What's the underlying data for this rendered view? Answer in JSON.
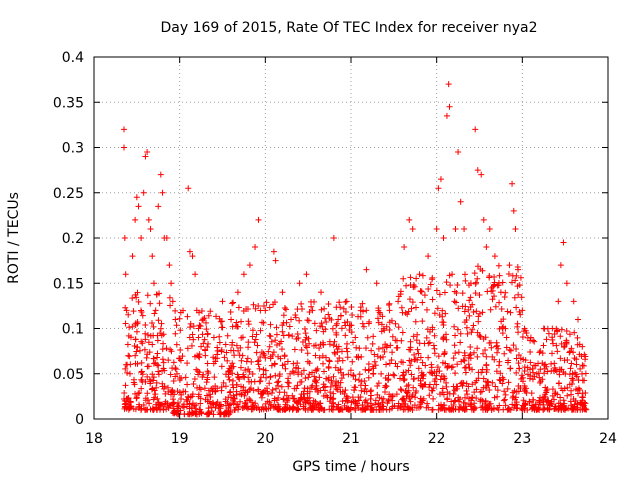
{
  "chart_data": {
    "type": "scatter",
    "title": "Day 169 of 2015, Rate Of TEC Index for receiver nya2",
    "xlabel": "GPS time / hours",
    "ylabel": "ROTI / TECUs",
    "xlim": [
      18,
      24
    ],
    "ylim": [
      0,
      0.4
    ],
    "x_ticks": [
      "18",
      "19",
      "20",
      "21",
      "22",
      "23",
      "24"
    ],
    "y_ticks": [
      "0",
      "0.05",
      "0.1",
      "0.15",
      "0.2",
      "0.25",
      "0.3",
      "0.35",
      "0.4"
    ],
    "grid": true,
    "marker": "+",
    "series": [
      {
        "name": "ROTI",
        "color": "#ff0000",
        "points": [
          [
            18.35,
            0.32
          ],
          [
            18.35,
            0.3
          ],
          [
            18.36,
            0.2
          ],
          [
            18.37,
            0.16
          ],
          [
            18.38,
            0.12
          ],
          [
            18.4,
            0.07
          ],
          [
            18.42,
            0.05
          ],
          [
            18.36,
            0.02
          ],
          [
            18.45,
            0.18
          ],
          [
            18.48,
            0.22
          ],
          [
            18.5,
            0.245
          ],
          [
            18.52,
            0.235
          ],
          [
            18.55,
            0.2
          ],
          [
            18.58,
            0.25
          ],
          [
            18.6,
            0.29
          ],
          [
            18.62,
            0.295
          ],
          [
            18.64,
            0.22
          ],
          [
            18.66,
            0.21
          ],
          [
            18.68,
            0.18
          ],
          [
            18.7,
            0.15
          ],
          [
            18.72,
            0.12
          ],
          [
            18.75,
            0.235
          ],
          [
            18.78,
            0.27
          ],
          [
            18.8,
            0.25
          ],
          [
            18.82,
            0.2
          ],
          [
            18.85,
            0.2
          ],
          [
            18.88,
            0.17
          ],
          [
            18.9,
            0.15
          ],
          [
            18.92,
            0.13
          ],
          [
            18.95,
            0.11
          ],
          [
            19.1,
            0.255
          ],
          [
            19.12,
            0.185
          ],
          [
            19.15,
            0.18
          ],
          [
            19.18,
            0.16
          ],
          [
            19.2,
            0.12
          ],
          [
            19.22,
            0.1
          ],
          [
            19.25,
            0.08
          ],
          [
            19.3,
            0.07
          ],
          [
            19.4,
            0.09
          ],
          [
            19.5,
            0.13
          ],
          [
            19.6,
            0.11
          ],
          [
            19.68,
            0.14
          ],
          [
            19.75,
            0.16
          ],
          [
            19.82,
            0.17
          ],
          [
            19.88,
            0.19
          ],
          [
            19.92,
            0.22
          ],
          [
            20.0,
            0.12
          ],
          [
            20.1,
            0.185
          ],
          [
            20.12,
            0.175
          ],
          [
            20.2,
            0.14
          ],
          [
            20.3,
            0.11
          ],
          [
            20.4,
            0.15
          ],
          [
            20.48,
            0.16
          ],
          [
            20.55,
            0.12
          ],
          [
            20.65,
            0.14
          ],
          [
            20.8,
            0.2
          ],
          [
            20.85,
            0.11
          ],
          [
            20.95,
            0.13
          ],
          [
            21.05,
            0.09
          ],
          [
            21.18,
            0.165
          ],
          [
            21.3,
            0.15
          ],
          [
            21.45,
            0.12
          ],
          [
            21.55,
            0.13
          ],
          [
            21.62,
            0.19
          ],
          [
            21.68,
            0.22
          ],
          [
            21.72,
            0.21
          ],
          [
            21.8,
            0.16
          ],
          [
            21.9,
            0.18
          ],
          [
            22.0,
            0.21
          ],
          [
            22.02,
            0.255
          ],
          [
            22.05,
            0.265
          ],
          [
            22.08,
            0.2
          ],
          [
            22.12,
            0.335
          ],
          [
            22.14,
            0.37
          ],
          [
            22.15,
            0.345
          ],
          [
            22.18,
            0.16
          ],
          [
            22.22,
            0.21
          ],
          [
            22.25,
            0.295
          ],
          [
            22.28,
            0.24
          ],
          [
            22.32,
            0.21
          ],
          [
            22.4,
            0.15
          ],
          [
            22.45,
            0.32
          ],
          [
            22.48,
            0.275
          ],
          [
            22.52,
            0.27
          ],
          [
            22.55,
            0.22
          ],
          [
            22.58,
            0.19
          ],
          [
            22.62,
            0.21
          ],
          [
            22.68,
            0.18
          ],
          [
            22.75,
            0.14
          ],
          [
            22.85,
            0.17
          ],
          [
            22.88,
            0.26
          ],
          [
            22.9,
            0.23
          ],
          [
            22.92,
            0.21
          ],
          [
            22.95,
            0.165
          ],
          [
            23.0,
            0.12
          ],
          [
            23.1,
            0.09
          ],
          [
            23.25,
            0.1
          ],
          [
            23.35,
            0.1
          ],
          [
            23.42,
            0.13
          ],
          [
            23.45,
            0.17
          ],
          [
            23.48,
            0.195
          ],
          [
            23.52,
            0.15
          ],
          [
            23.6,
            0.13
          ],
          [
            23.65,
            0.11
          ],
          [
            23.7,
            0.08
          ]
        ],
        "dense_band": [
          {
            "x": [
              18.35,
              18.9
            ],
            "y": [
              0.01,
              0.14
            ]
          },
          {
            "x": [
              18.9,
              19.6
            ],
            "y": [
              0.005,
              0.12
            ]
          },
          {
            "x": [
              19.6,
              20.5
            ],
            "y": [
              0.01,
              0.13
            ]
          },
          {
            "x": [
              20.5,
              21.5
            ],
            "y": [
              0.01,
              0.13
            ]
          },
          {
            "x": [
              21.5,
              22.4
            ],
            "y": [
              0.01,
              0.16
            ]
          },
          {
            "x": [
              22.4,
              23.0
            ],
            "y": [
              0.01,
              0.17
            ]
          },
          {
            "x": [
              23.0,
              23.75
            ],
            "y": [
              0.01,
              0.1
            ]
          }
        ]
      }
    ]
  }
}
